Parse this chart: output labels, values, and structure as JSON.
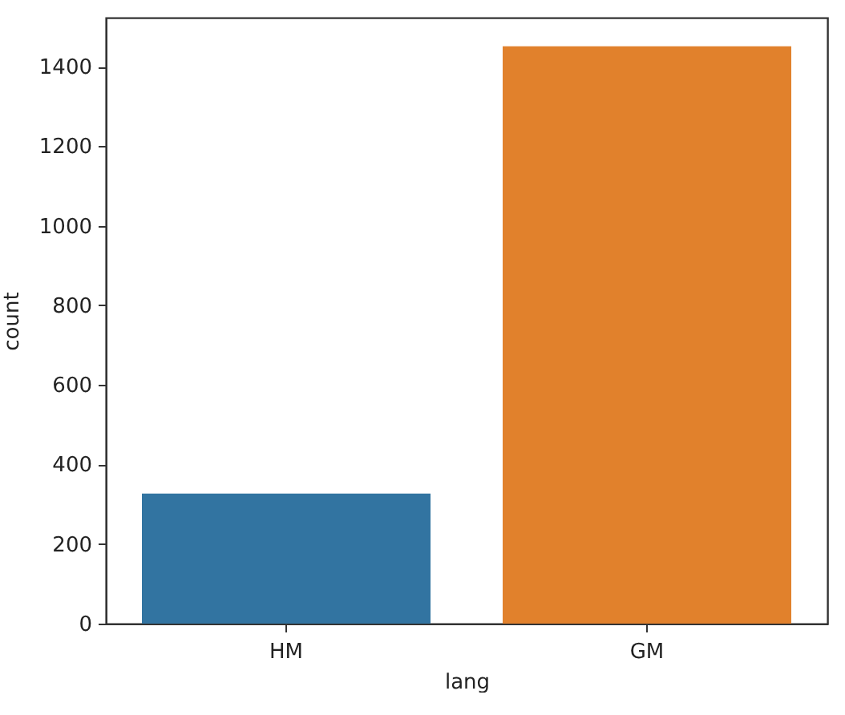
{
  "chart_data": {
    "type": "bar",
    "xlabel": "lang",
    "ylabel": "count",
    "categories": [
      "HM",
      "GM"
    ],
    "values": [
      327,
      1451
    ],
    "colors": [
      "#3274a1",
      "#e1812c"
    ],
    "ylim": [
      0,
      1523
    ],
    "yticks": [
      0,
      200,
      400,
      600,
      800,
      1000,
      1200,
      1400
    ],
    "grid": false,
    "legend": false
  }
}
